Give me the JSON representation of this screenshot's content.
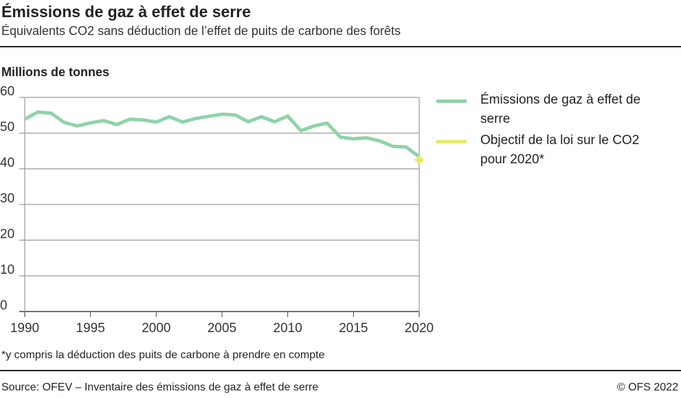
{
  "title": "Émissions de gaz à effet de serre",
  "subtitle": "Équivalents CO2 sans déduction de l’effet de puits de carbone des forêts",
  "unit_label": "Millions de tonnes",
  "note": "*y compris la déduction des puits de carbone à prendre en compte",
  "source": "Source: OFEV –  Inventaire des émissions de gaz à effet de serre",
  "copyright": "© OFS 2022",
  "chart_data": {
    "type": "line",
    "ylabel": "Millions de tonnes",
    "ylim": [
      0,
      60
    ],
    "xlim": [
      1990,
      2020
    ],
    "yticks": [
      0,
      10,
      20,
      30,
      40,
      50,
      60
    ],
    "xticks": [
      1990,
      1995,
      2000,
      2005,
      2010,
      2015,
      2020
    ],
    "grid": true,
    "legend": "right",
    "series": [
      {
        "name": "Émissions de gaz à effet de serre",
        "color": "#8fd3a8",
        "x": [
          1990,
          1991,
          1992,
          1993,
          1994,
          1995,
          1996,
          1997,
          1998,
          1999,
          2000,
          2001,
          2002,
          2003,
          2004,
          2005,
          2006,
          2007,
          2008,
          2009,
          2010,
          2011,
          2012,
          2013,
          2014,
          2015,
          2016,
          2017,
          2018,
          2019,
          2020
        ],
        "values": [
          53.9,
          55.9,
          55.6,
          53.0,
          52.0,
          52.9,
          53.5,
          52.4,
          53.9,
          53.7,
          53.1,
          54.6,
          53.1,
          54.1,
          54.7,
          55.3,
          55.1,
          53.2,
          54.6,
          53.2,
          54.8,
          50.7,
          52.0,
          52.8,
          48.9,
          48.4,
          48.7,
          47.8,
          46.3,
          46.1,
          43.4
        ]
      },
      {
        "name": "Objectif de la loi sur le CO2 pour 2020*",
        "color": "#e3ea6a",
        "x": [
          2020
        ],
        "values": [
          42.5
        ]
      }
    ]
  }
}
